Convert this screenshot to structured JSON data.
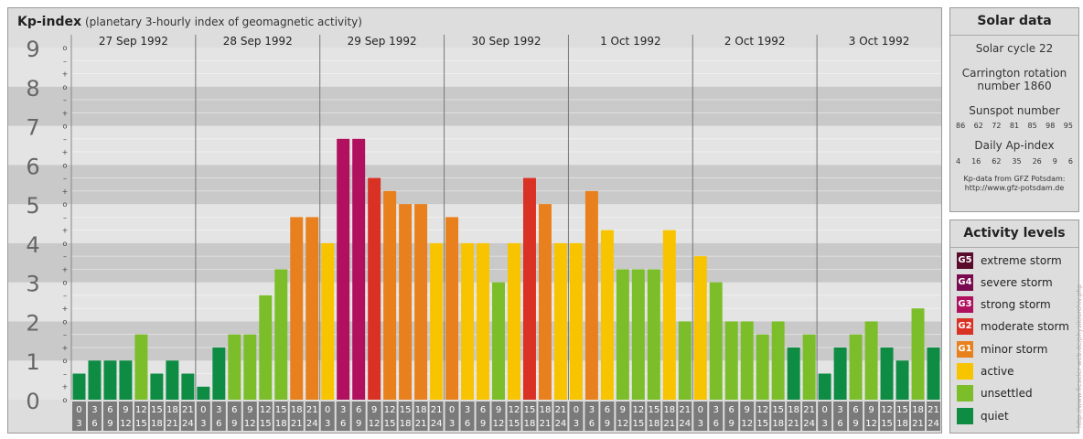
{
  "header": {
    "title": "Kp-index",
    "subtitle": "(planetary 3-hourly index of geomagnetic activity)"
  },
  "solar": {
    "title": "Solar data",
    "cycle": "Solar cycle 22",
    "carrington_line1": "Carrington rotation",
    "carrington_line2": "number 1860",
    "sunspot_label": "Sunspot number",
    "sunspot_numbers": [
      "86",
      "62",
      "72",
      "81",
      "85",
      "98",
      "95"
    ],
    "ap_label": "Daily Ap-index",
    "ap_values": [
      "4",
      "16",
      "62",
      "35",
      "26",
      "9",
      "6"
    ],
    "source_line1": "Kp-data from GFZ Potsdam:",
    "source_line2": "http://www.gfz-potsdam.de"
  },
  "activity": {
    "title": "Activity levels",
    "levels": [
      {
        "badge": "G5",
        "label": "extreme storm",
        "color": "#5a0a2a"
      },
      {
        "badge": "G4",
        "label": "severe storm",
        "color": "#7a0a50"
      },
      {
        "badge": "G3",
        "label": "strong storm",
        "color": "#b0105e"
      },
      {
        "badge": "G2",
        "label": "moderate storm",
        "color": "#d93225"
      },
      {
        "badge": "G1",
        "label": "minor storm",
        "color": "#e8801e"
      },
      {
        "badge": "",
        "label": "active",
        "color": "#f8c400"
      },
      {
        "badge": "",
        "label": "unsettled",
        "color": "#7cbe2a"
      },
      {
        "badge": "",
        "label": "quiet",
        "color": "#0e8c44"
      }
    ]
  },
  "watermark": "http://www.fieseler-web.de/physik/archiv.php",
  "chart_data": {
    "type": "bar",
    "title": "Kp-index",
    "ylim": [
      0,
      9
    ],
    "y_ticks": [
      "0",
      "1",
      "2",
      "3",
      "4",
      "5",
      "6",
      "7",
      "8",
      "9"
    ],
    "sub_tick_labels": [
      "o",
      "+",
      "–"
    ],
    "days": [
      "27 Sep 1992",
      "28 Sep 1992",
      "29 Sep 1992",
      "30 Sep 1992",
      "1 Oct 1992",
      "2 Oct 1992",
      "3 Oct 1992"
    ],
    "interval_start": [
      "0",
      "3",
      "6",
      "9",
      "12",
      "15",
      "18",
      "21"
    ],
    "interval_end": [
      "3",
      "6",
      "9",
      "12",
      "15",
      "18",
      "21",
      "24"
    ],
    "values": [
      0.667,
      1.0,
      1.0,
      1.0,
      1.667,
      0.667,
      1.0,
      0.667,
      0.333,
      1.333,
      1.667,
      1.667,
      2.667,
      3.333,
      4.667,
      4.667,
      4.0,
      6.667,
      6.667,
      5.667,
      5.333,
      5.0,
      5.0,
      4.0,
      4.667,
      4.0,
      4.0,
      3.0,
      4.0,
      5.667,
      5.0,
      4.0,
      4.0,
      5.333,
      4.333,
      3.333,
      3.333,
      3.333,
      4.333,
      2.0,
      3.667,
      3.0,
      2.0,
      2.0,
      1.667,
      2.0,
      1.333,
      1.667,
      0.667,
      1.333,
      1.667,
      2.0,
      1.333,
      1.0,
      2.333,
      1.333
    ],
    "colors": {
      "quiet": "#0e8c44",
      "unsettled": "#7cbe2a",
      "active": "#f8c400",
      "G1": "#e8801e",
      "G2": "#d93225",
      "G3": "#b0105e",
      "G4": "#7a0a50",
      "G5": "#5a0a2a"
    }
  }
}
